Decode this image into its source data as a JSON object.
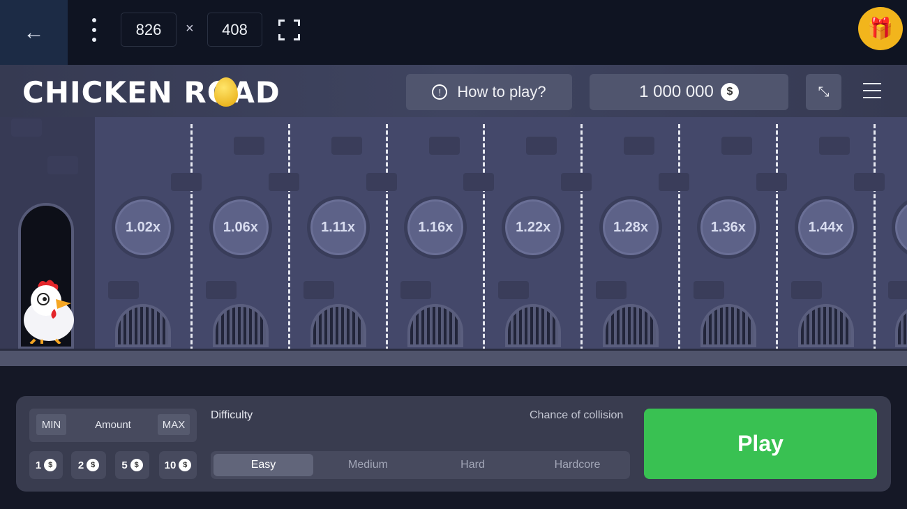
{
  "toolbar": {
    "back_icon": "arrow-left-icon",
    "width": "826",
    "times": "×",
    "height": "408",
    "fullscreen_icon": "fullscreen-icon",
    "gift_icon": "gift-icon"
  },
  "header": {
    "logo": "CHICKEN ROAD",
    "how_to_play": "How to play?",
    "balance": "1 000 000",
    "currency_symbol": "$"
  },
  "game": {
    "multipliers": [
      "1.02x",
      "1.06x",
      "1.11x",
      "1.16x",
      "1.22x",
      "1.28x",
      "1.36x",
      "1.44x"
    ]
  },
  "controls": {
    "min": "MIN",
    "amount": "Amount",
    "max": "MAX",
    "chips": [
      "1",
      "2",
      "5",
      "10"
    ],
    "difficulty_label": "Difficulty",
    "collision_label": "Chance of collision",
    "difficulties": [
      "Easy",
      "Medium",
      "Hard",
      "Hardcore"
    ],
    "selected_difficulty": "Easy",
    "play": "Play"
  },
  "colors": {
    "play": "#39c152",
    "gift": "#f2b51c",
    "background": "#151826"
  }
}
